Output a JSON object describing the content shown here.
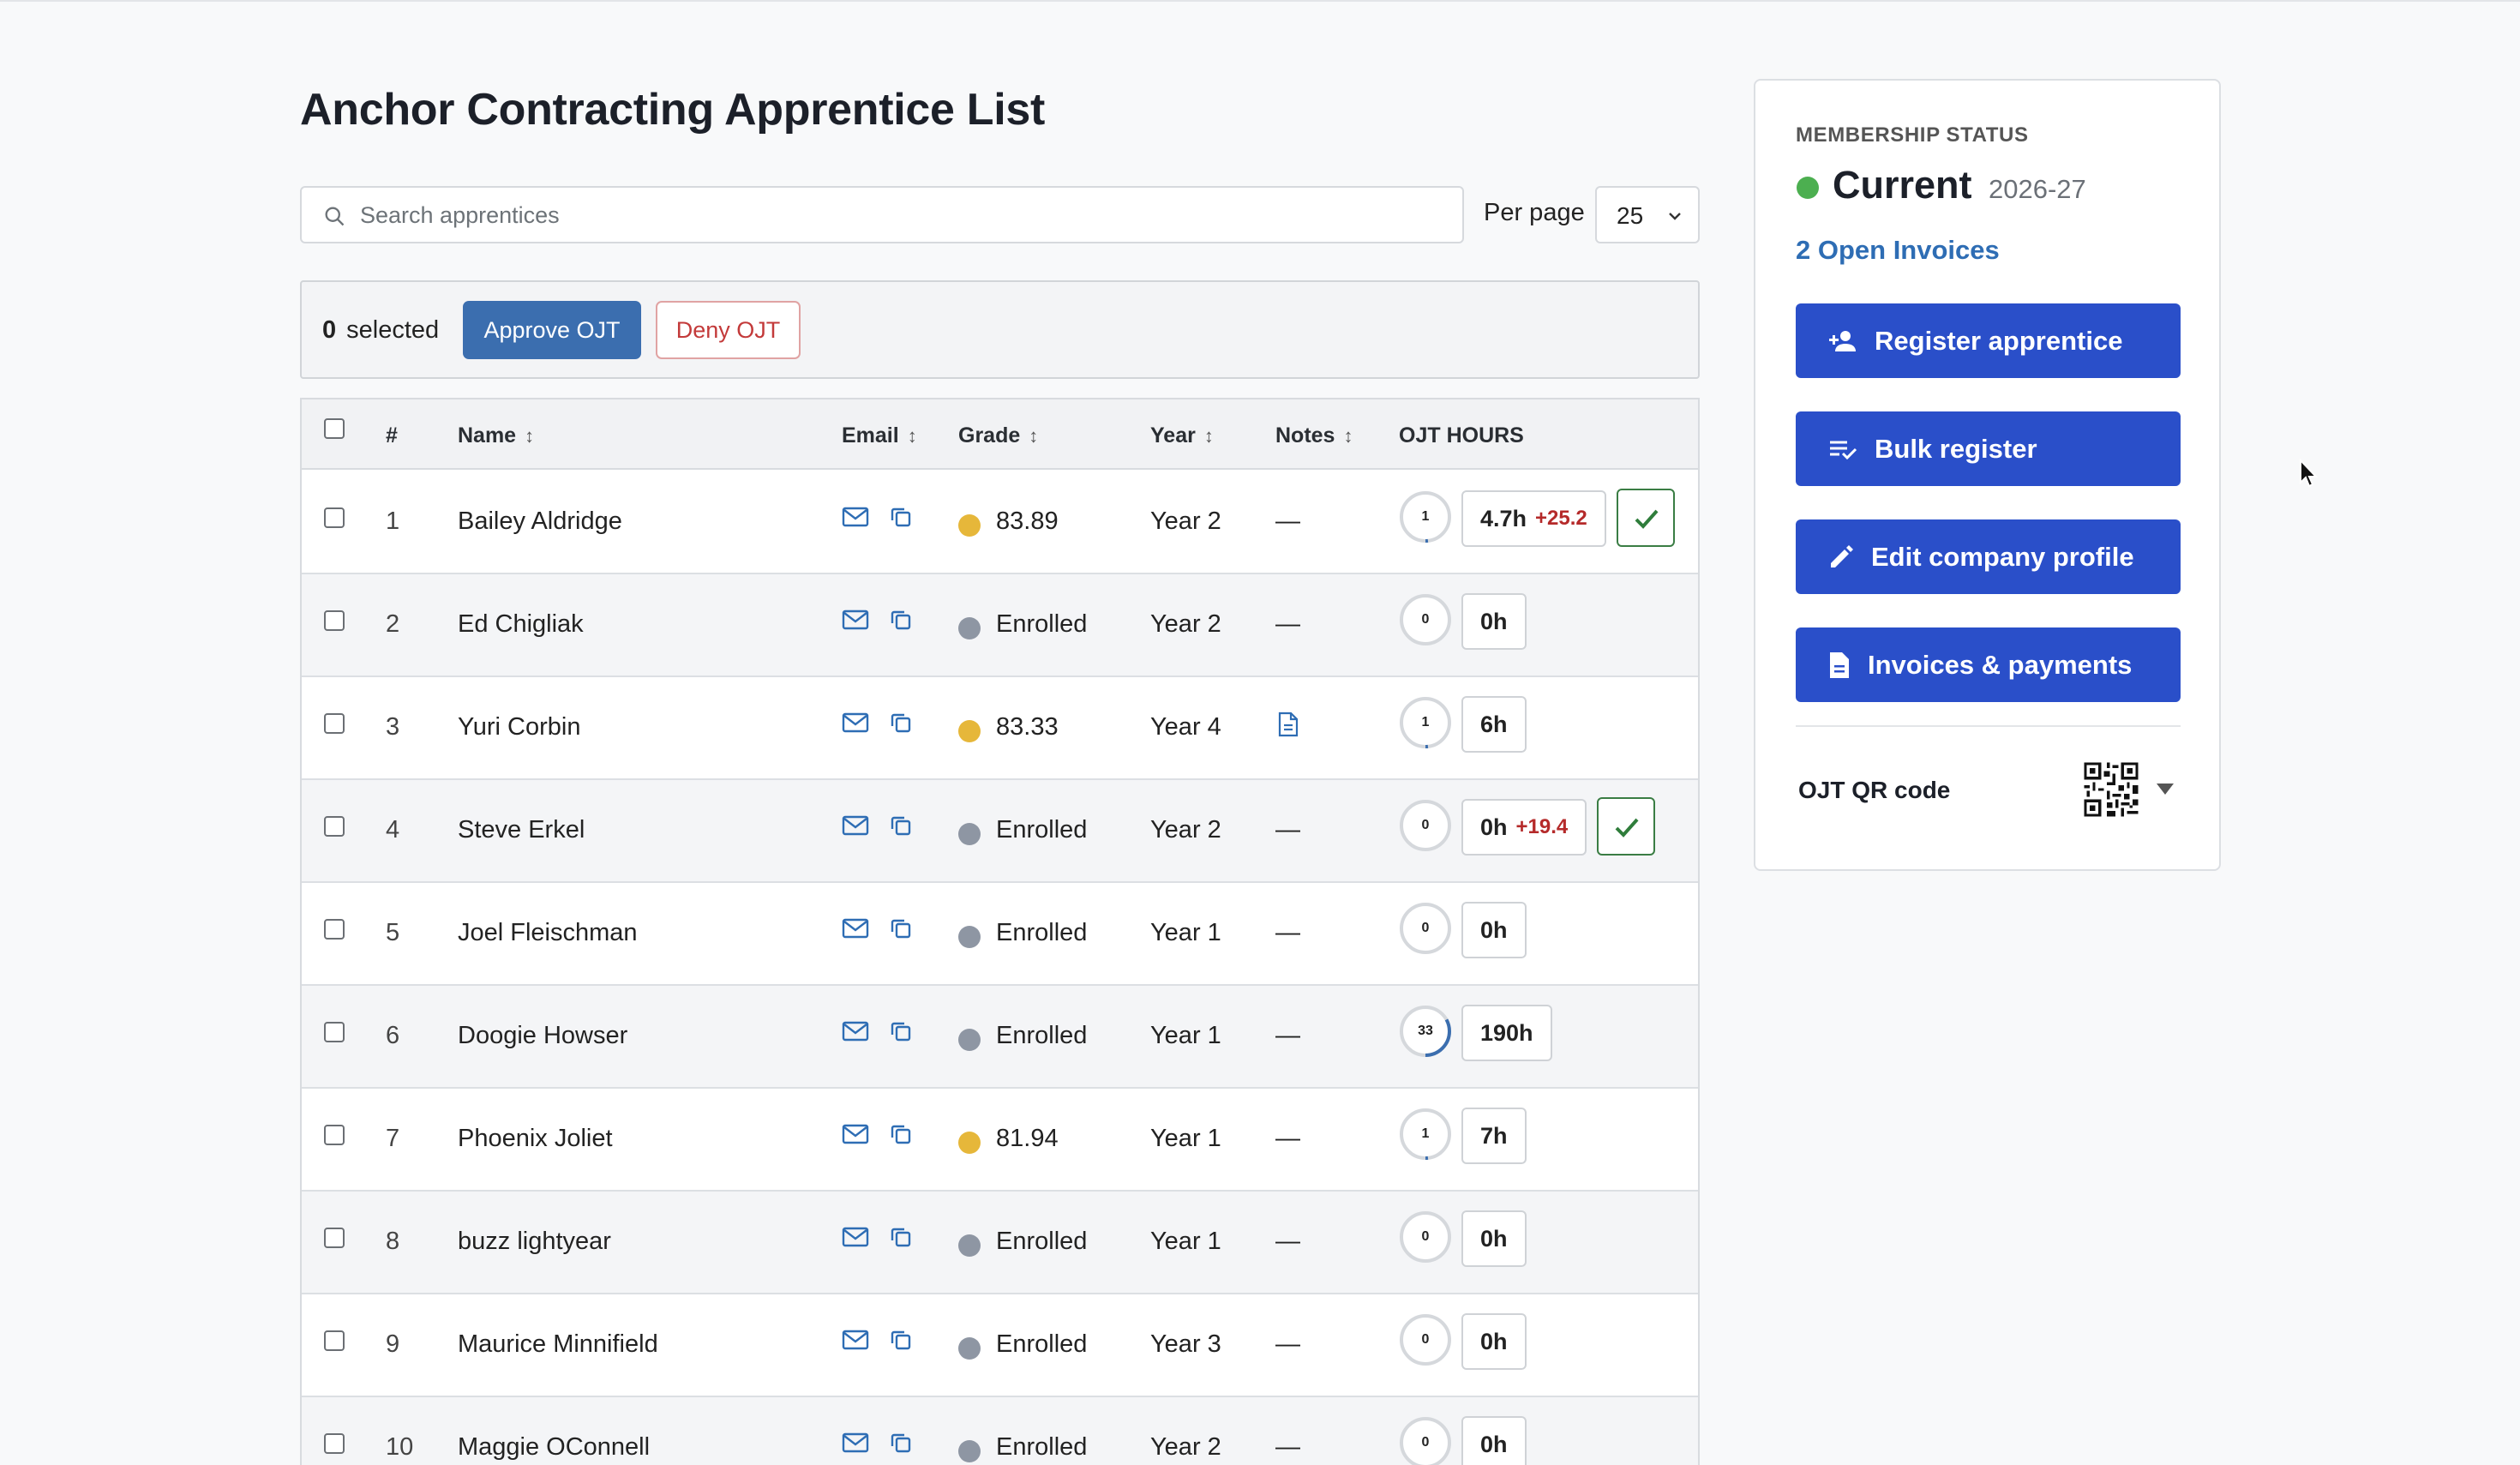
{
  "page_title": "Anchor Contracting Apprentice List",
  "search": {
    "placeholder": "Search apprentices",
    "value": ""
  },
  "per_page": {
    "label": "Per page",
    "value": "25"
  },
  "bulk": {
    "count": "0",
    "count_label": "selected",
    "approve_label": "Approve OJT",
    "deny_label": "Deny OJT"
  },
  "columns": {
    "num": "#",
    "name": "Name",
    "email": "Email",
    "grade": "Grade",
    "year": "Year",
    "notes": "Notes",
    "ojt_hours": "OJT HOURS",
    "sort_glyph": "↕"
  },
  "colors": {
    "grade_yellow": "#e6b73a",
    "grade_gray": "#8e96a3",
    "ring_progress": "#3b6eaf",
    "status_current": "#4caf50"
  },
  "rows": [
    {
      "num": "1",
      "name": "Bailey Aldridge",
      "grade_dot": "grade_yellow",
      "grade": "83.89",
      "year": "Year 2",
      "notes": "—",
      "has_note_icon": false,
      "ring": "1",
      "ring_pct": 0.01,
      "hours": "4.7h",
      "delta": "+25.2",
      "approved": true
    },
    {
      "num": "2",
      "name": "Ed Chigliak",
      "grade_dot": "grade_gray",
      "grade": "Enrolled",
      "year": "Year 2",
      "notes": "—",
      "has_note_icon": false,
      "ring": "0",
      "ring_pct": 0,
      "hours": "0h",
      "delta": "",
      "approved": false
    },
    {
      "num": "3",
      "name": "Yuri Corbin",
      "grade_dot": "grade_yellow",
      "grade": "83.33",
      "year": "Year 4",
      "notes": "",
      "has_note_icon": true,
      "ring": "1",
      "ring_pct": 0.01,
      "hours": "6h",
      "delta": "",
      "approved": false
    },
    {
      "num": "4",
      "name": "Steve Erkel",
      "grade_dot": "grade_gray",
      "grade": "Enrolled",
      "year": "Year 2",
      "notes": "—",
      "has_note_icon": false,
      "ring": "0",
      "ring_pct": 0,
      "hours": "0h",
      "delta": "+19.4",
      "approved": true
    },
    {
      "num": "5",
      "name": "Joel Fleischman",
      "grade_dot": "grade_gray",
      "grade": "Enrolled",
      "year": "Year 1",
      "notes": "—",
      "has_note_icon": false,
      "ring": "0",
      "ring_pct": 0,
      "hours": "0h",
      "delta": "",
      "approved": false
    },
    {
      "num": "6",
      "name": "Doogie Howser",
      "grade_dot": "grade_gray",
      "grade": "Enrolled",
      "year": "Year 1",
      "notes": "—",
      "has_note_icon": false,
      "ring": "33",
      "ring_pct": 0.33,
      "hours": "190h",
      "delta": "",
      "approved": false
    },
    {
      "num": "7",
      "name": "Phoenix Joliet",
      "grade_dot": "grade_yellow",
      "grade": "81.94",
      "year": "Year 1",
      "notes": "—",
      "has_note_icon": false,
      "ring": "1",
      "ring_pct": 0.01,
      "hours": "7h",
      "delta": "",
      "approved": false
    },
    {
      "num": "8",
      "name": "buzz lightyear",
      "grade_dot": "grade_gray",
      "grade": "Enrolled",
      "year": "Year 1",
      "notes": "—",
      "has_note_icon": false,
      "ring": "0",
      "ring_pct": 0,
      "hours": "0h",
      "delta": "",
      "approved": false
    },
    {
      "num": "9",
      "name": "Maurice Minnifield",
      "grade_dot": "grade_gray",
      "grade": "Enrolled",
      "year": "Year 3",
      "notes": "—",
      "has_note_icon": false,
      "ring": "0",
      "ring_pct": 0,
      "hours": "0h",
      "delta": "",
      "approved": false
    },
    {
      "num": "10",
      "name": "Maggie OConnell",
      "grade_dot": "grade_gray",
      "grade": "Enrolled",
      "year": "Year 2",
      "notes": "—",
      "has_note_icon": false,
      "ring": "0",
      "ring_pct": 0,
      "hours": "0h",
      "delta": "",
      "approved": false
    }
  ],
  "sidebar": {
    "membership_label": "MEMBERSHIP STATUS",
    "status": "Current",
    "status_year": "2026-27",
    "open_invoices": "2 Open Invoices",
    "buttons": [
      {
        "label": "Register apprentice",
        "icon": "person-add-icon"
      },
      {
        "label": "Bulk register",
        "icon": "playlist-check-icon"
      },
      {
        "label": "Edit company profile",
        "icon": "pencil-icon"
      },
      {
        "label": "Invoices & payments",
        "icon": "document-icon"
      }
    ],
    "qr_label": "OJT QR code"
  }
}
